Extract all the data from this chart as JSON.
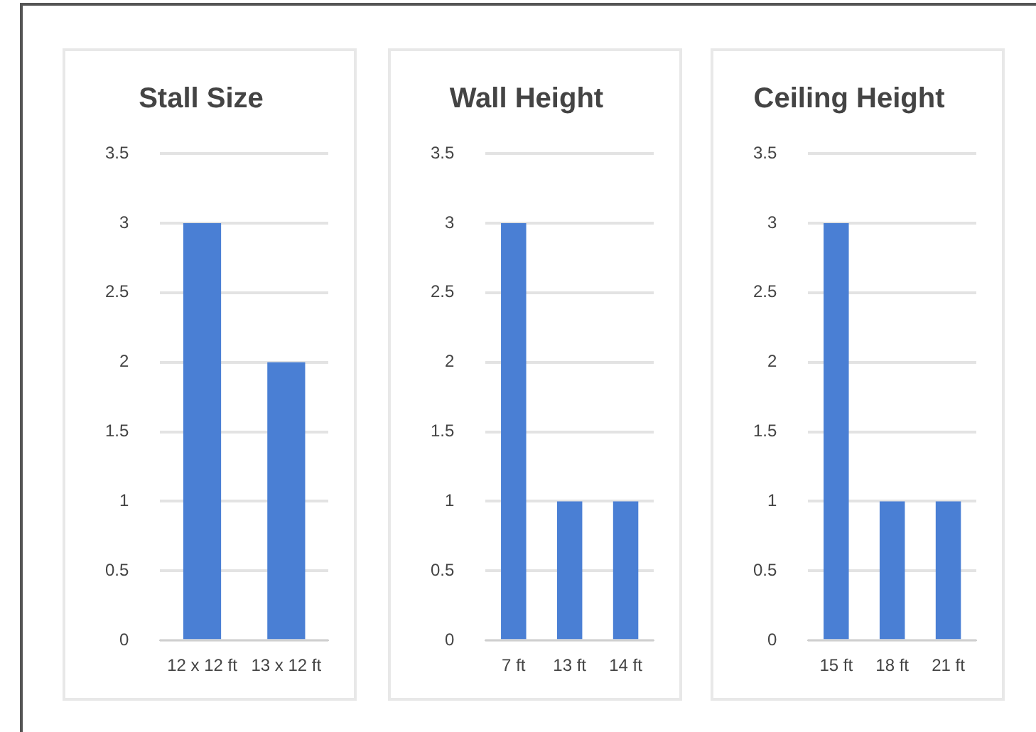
{
  "chart_data": [
    {
      "type": "bar",
      "title": "Stall Size",
      "categories": [
        "12 x 12 ft",
        "13 x 12 ft"
      ],
      "values": [
        3,
        2
      ],
      "color": "#4a7fd4",
      "ylim": [
        0,
        3.5
      ],
      "yticks": [
        0,
        0.5,
        1,
        1.5,
        2,
        2.5,
        3,
        3.5
      ],
      "grid": "y"
    },
    {
      "type": "bar",
      "title": "Wall Height",
      "categories": [
        "7 ft",
        "13 ft",
        "14 ft"
      ],
      "values": [
        3,
        1,
        1
      ],
      "color": "#4a7fd4",
      "ylim": [
        0,
        3.5
      ],
      "yticks": [
        0,
        0.5,
        1,
        1.5,
        2,
        2.5,
        3,
        3.5
      ],
      "grid": "y"
    },
    {
      "type": "bar",
      "title": "Ceiling Height",
      "categories": [
        "15 ft",
        "18 ft",
        "21 ft"
      ],
      "values": [
        3,
        1,
        1
      ],
      "color": "#4a7fd4",
      "ylim": [
        0,
        3.5
      ],
      "yticks": [
        0,
        0.5,
        1,
        1.5,
        2,
        2.5,
        3,
        3.5
      ],
      "grid": "y"
    }
  ]
}
